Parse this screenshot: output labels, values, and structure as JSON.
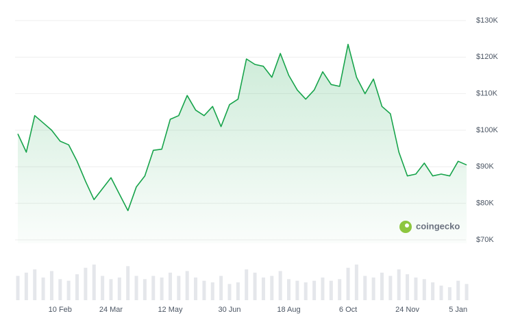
{
  "chart_data": {
    "type": "area",
    "watermark": "coingecko",
    "categories": [
      null,
      null,
      null,
      null,
      null,
      "10 Feb",
      null,
      null,
      null,
      null,
      null,
      "24 Mar",
      null,
      null,
      null,
      null,
      null,
      null,
      "12 May",
      null,
      null,
      null,
      null,
      null,
      null,
      "30 Jun",
      null,
      null,
      null,
      null,
      null,
      null,
      "18 Aug",
      null,
      null,
      null,
      null,
      null,
      null,
      "6 Oct",
      null,
      null,
      null,
      null,
      null,
      null,
      "24 Nov",
      null,
      null,
      null,
      null,
      null,
      "5 Jan",
      null
    ],
    "series": [
      {
        "name": "Price",
        "color": "#16a34a",
        "values": [
          99000,
          94000,
          104000,
          102000,
          100000,
          97000,
          96000,
          91500,
          86000,
          81000,
          84000,
          87000,
          82500,
          78000,
          84500,
          87500,
          94500,
          94800,
          103000,
          104000,
          109500,
          105500,
          104000,
          106500,
          101000,
          107000,
          108500,
          119500,
          118000,
          117500,
          114500,
          121000,
          115000,
          111000,
          108500,
          111000,
          116000,
          112500,
          112000,
          123500,
          114500,
          110000,
          114000,
          106500,
          104500,
          94000,
          87500,
          88000,
          91000,
          87500,
          88000,
          87500,
          91500,
          90500
        ]
      },
      {
        "name": "Volume",
        "color": "#e5e7eb",
        "values": [
          30,
          34,
          38,
          28,
          36,
          26,
          24,
          32,
          40,
          44,
          30,
          26,
          28,
          42,
          30,
          26,
          30,
          28,
          34,
          30,
          36,
          28,
          24,
          22,
          30,
          20,
          22,
          38,
          34,
          28,
          30,
          36,
          26,
          24,
          22,
          24,
          28,
          24,
          26,
          40,
          44,
          30,
          28,
          34,
          30,
          38,
          32,
          28,
          26,
          22,
          18,
          16,
          24,
          20
        ]
      }
    ],
    "ylim": [
      70000,
      130000
    ],
    "yticks": [
      {
        "value": 70000,
        "label": "$70K"
      },
      {
        "value": 80000,
        "label": "$80K"
      },
      {
        "value": 90000,
        "label": "$90K"
      },
      {
        "value": 100000,
        "label": "$100K"
      },
      {
        "value": 110000,
        "label": "$110K"
      },
      {
        "value": 120000,
        "label": "$120K"
      },
      {
        "value": 130000,
        "label": "$130K"
      }
    ],
    "grid": true
  }
}
